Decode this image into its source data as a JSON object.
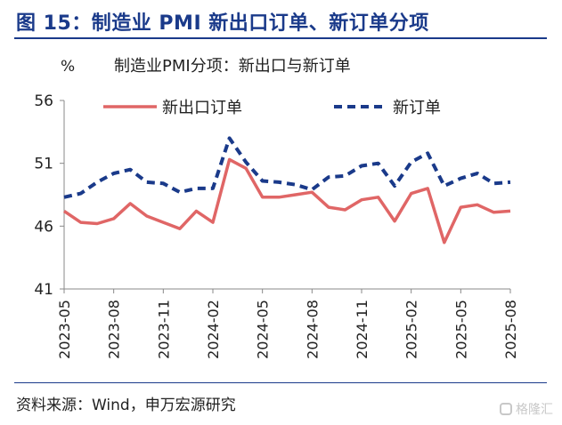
{
  "header": {
    "title": "图 15：制造业 PMI 新出口订单、新订单分项"
  },
  "footer": {
    "source": "资料来源：Wind，申万宏源研究",
    "watermark": "格隆汇"
  },
  "chart_data": {
    "type": "line",
    "title": "制造业PMI分项：新出口与新订单",
    "ylabel": "%",
    "xlabel": "",
    "ylim": [
      41,
      56
    ],
    "yticks": [
      41,
      46,
      51,
      56
    ],
    "x": [
      "2023-05",
      "2023-06",
      "2023-07",
      "2023-08",
      "2023-09",
      "2023-10",
      "2023-11",
      "2023-12",
      "2024-01",
      "2024-02",
      "2024-03",
      "2024-04",
      "2024-05",
      "2024-06",
      "2024-07",
      "2024-08",
      "2024-09",
      "2024-10",
      "2024-11",
      "2024-12",
      "2025-01",
      "2025-02",
      "2025-03",
      "2025-04",
      "2025-05",
      "2025-06",
      "2025-07",
      "2025-08"
    ],
    "xtick_labels": [
      "2023-05",
      "2023-08",
      "2023-11",
      "2024-02",
      "2024-05",
      "2024-08",
      "2024-11",
      "2025-02",
      "2025-05",
      "2025-08"
    ],
    "grid": false,
    "legend_position": "top",
    "series": [
      {
        "name": "新出口订单",
        "style": "solid",
        "color": "#e06666",
        "values": [
          47.2,
          46.3,
          46.2,
          46.6,
          47.8,
          46.8,
          46.3,
          45.8,
          47.2,
          46.3,
          51.3,
          50.6,
          48.3,
          48.3,
          48.5,
          48.7,
          47.5,
          47.3,
          48.1,
          48.3,
          46.4,
          48.6,
          49.0,
          44.7,
          47.5,
          47.7,
          47.1,
          47.2
        ]
      },
      {
        "name": "新订单",
        "style": "dashed",
        "color": "#1a3a8a",
        "values": [
          48.3,
          48.6,
          49.5,
          50.2,
          50.5,
          49.5,
          49.4,
          48.7,
          49.0,
          49.0,
          53.0,
          51.1,
          49.6,
          49.5,
          49.3,
          48.9,
          49.9,
          50.0,
          50.8,
          51.0,
          49.2,
          51.1,
          51.8,
          49.2,
          49.8,
          50.2,
          49.4,
          49.5
        ]
      }
    ]
  }
}
